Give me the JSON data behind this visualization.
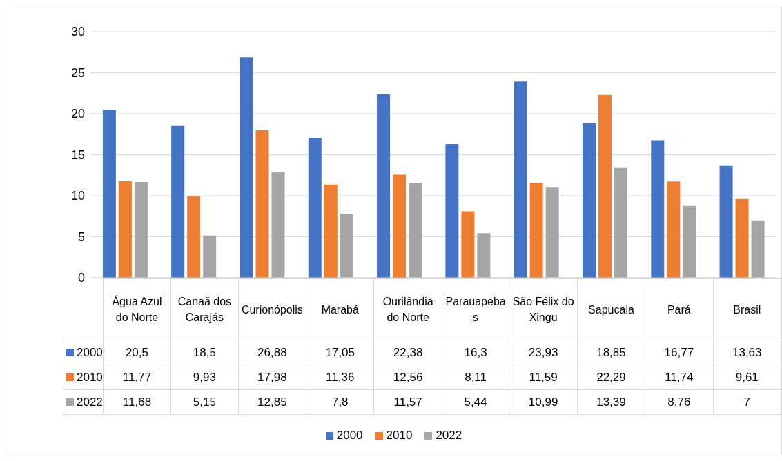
{
  "chart_data": {
    "type": "bar",
    "categories": [
      "Água Azul do Norte",
      "Canaã dos Carajás",
      "Curionópolis",
      "Marabá",
      "Ourilândia do Norte",
      "Parauapebas",
      "São Félix do Xingu",
      "Sapucaia",
      "Pará",
      "Brasil"
    ],
    "series": [
      {
        "name": "2000",
        "color": "#4472c4",
        "values": [
          20.5,
          18.5,
          26.88,
          17.05,
          22.38,
          16.3,
          23.93,
          18.85,
          16.77,
          13.63
        ],
        "value_labels": [
          "20,5",
          "18,5",
          "26,88",
          "17,05",
          "22,38",
          "16,3",
          "23,93",
          "18,85",
          "16,77",
          "13,63"
        ]
      },
      {
        "name": "2010",
        "color": "#ed7d31",
        "values": [
          11.77,
          9.93,
          17.98,
          11.36,
          12.56,
          8.11,
          11.59,
          22.29,
          11.74,
          9.61
        ],
        "value_labels": [
          "11,77",
          "9,93",
          "17,98",
          "11,36",
          "12,56",
          "8,11",
          "11,59",
          "22,29",
          "11,74",
          "9,61"
        ]
      },
      {
        "name": "2022",
        "color": "#a5a5a5",
        "values": [
          11.68,
          5.15,
          12.85,
          7.8,
          11.57,
          5.44,
          10.99,
          13.39,
          8.76,
          7
        ],
        "value_labels": [
          "11,68",
          "5,15",
          "12,85",
          "7,8",
          "11,57",
          "5,44",
          "10,99",
          "13,39",
          "8,76",
          "7"
        ]
      }
    ],
    "ylim": [
      0,
      30
    ],
    "yticks": [
      0,
      5,
      10,
      15,
      20,
      25,
      30
    ],
    "grid": "y",
    "legend": "bottom"
  }
}
